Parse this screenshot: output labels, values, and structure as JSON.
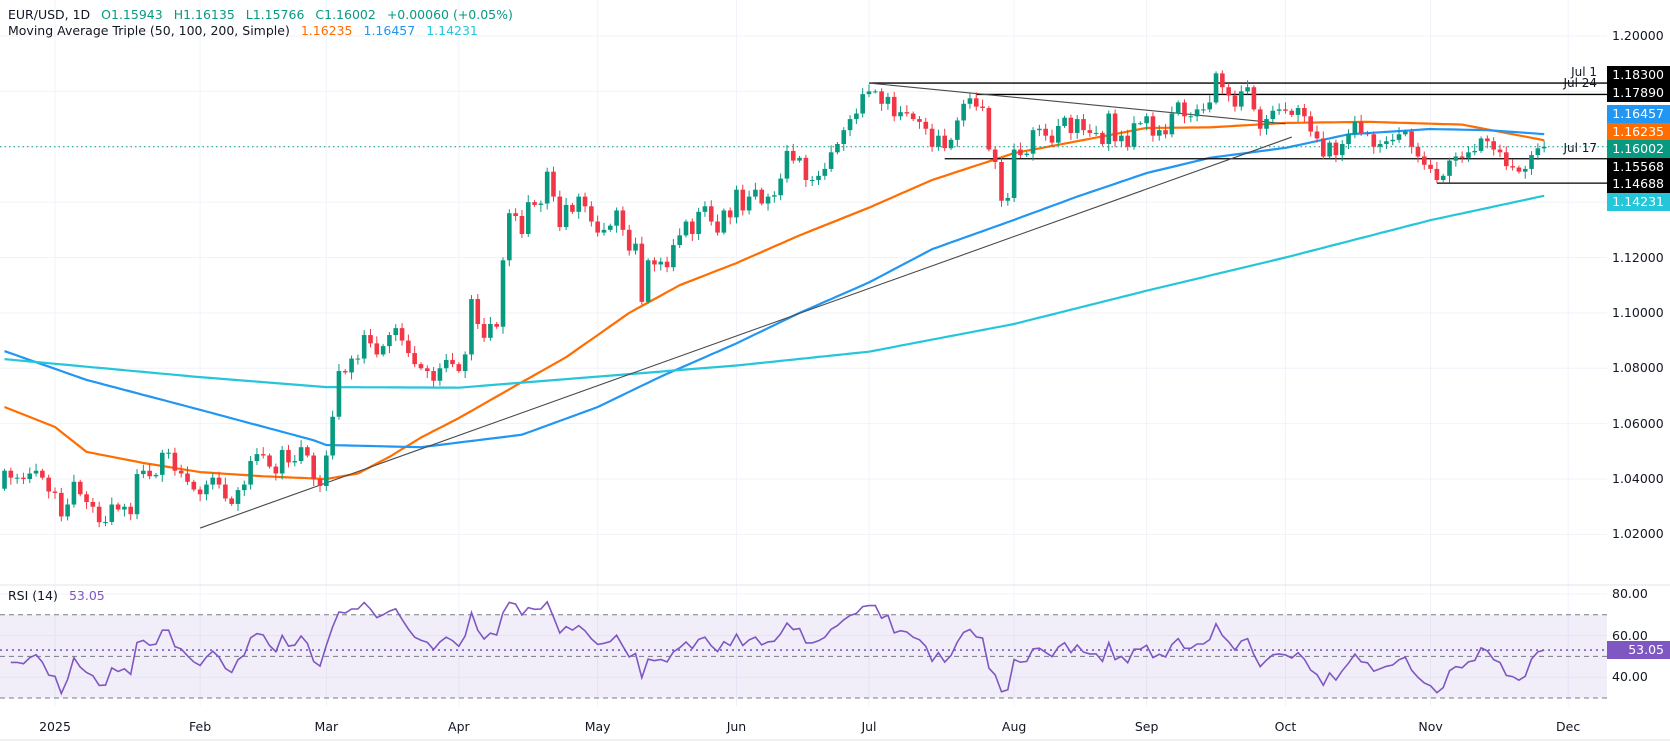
{
  "header": {
    "symbol": "EUR/USD, 1D",
    "open": "O1.15943",
    "high": "H1.16135",
    "low": "L1.15766",
    "close": "C1.16002",
    "change": "+0.00060 (+0.05%)",
    "ma_title": "Moving Average Triple (50, 100, 200, Simple)",
    "ma50": "1.16235",
    "ma100": "1.16457",
    "ma200": "1.14231"
  },
  "rsi_legend": {
    "title": "RSI (14)",
    "value": "53.05"
  },
  "colors": {
    "up": "#089981",
    "down": "#f23645",
    "ma50": "#ff6d00",
    "ma100": "#2196f3",
    "ma200": "#26c6da",
    "rsi": "#7e57c2",
    "level": "#000000"
  },
  "chart_data": {
    "type": "candlestick",
    "symbol": "EUR/USD",
    "interval": "1D",
    "ylim": [
      1.005,
      1.21
    ],
    "y_ticks": [
      "1.20000",
      "1.12000",
      "1.10000",
      "1.08000",
      "1.06000",
      "1.04000",
      "1.02000"
    ],
    "x_ticks": [
      "2025",
      "Feb",
      "Mar",
      "Apr",
      "May",
      "Jun",
      "Jul",
      "Aug",
      "Sep",
      "Oct",
      "Nov",
      "Dec"
    ],
    "grid": true,
    "last_price": 1.16002,
    "candles": {
      "first_open": 1.0365,
      "months": [
        {
          "month": "2024-12",
          "first_day": 20,
          "closes": [
            1.043,
            1.0405,
            1.0405,
            1.04,
            1.042,
            1.043,
            1.0405,
            1.0355
          ]
        },
        {
          "month": "2025-01",
          "first_day": 1,
          "closes": [
            1.035,
            1.0265,
            1.0308,
            1.039,
            1.0345,
            1.0317,
            1.03,
            1.0244,
            1.0245,
            1.0308,
            1.029,
            1.03,
            1.0273,
            1.0418,
            1.043,
            1.041,
            1.0415,
            1.0495,
            1.0495,
            1.043,
            1.042,
            1.039,
            1.0362
          ]
        },
        {
          "month": "2025-02",
          "first_day": 1,
          "closes": [
            1.0345,
            1.038,
            1.0405,
            1.038,
            1.033,
            1.031,
            1.036,
            1.038,
            1.0465,
            1.049,
            1.0485,
            1.0445,
            1.042,
            1.0505,
            1.046,
            1.0465,
            1.0515,
            1.0485,
            1.04,
            1.0375
          ]
        },
        {
          "month": "2025-03",
          "first_day": 1,
          "closes": [
            1.0485,
            1.0625,
            1.079,
            1.0785,
            1.0835,
            1.0835,
            1.092,
            1.089,
            1.085,
            1.088,
            1.092,
            1.0945,
            1.09,
            1.0855,
            1.0815,
            1.08,
            1.079,
            1.0755,
            1.08,
            1.083,
            1.0815
          ]
        },
        {
          "month": "2025-04",
          "first_day": 1,
          "closes": [
            1.079,
            1.085,
            1.105,
            1.096,
            1.091,
            1.096,
            1.095,
            1.119,
            1.136,
            1.135,
            1.1285,
            1.14,
            1.139,
            1.1395,
            1.151,
            1.142,
            1.131,
            1.139,
            1.1365,
            1.142,
            1.1385,
            1.133
          ]
        },
        {
          "month": "2025-05",
          "first_day": 1,
          "closes": [
            1.129,
            1.13,
            1.1315,
            1.137,
            1.13,
            1.1225,
            1.125,
            1.104,
            1.119,
            1.1175,
            1.1185,
            1.1165,
            1.1245,
            1.128,
            1.133,
            1.1285,
            1.1365,
            1.1385,
            1.133,
            1.129,
            1.137,
            1.1345
          ]
        },
        {
          "month": "2025-06",
          "first_day": 1,
          "closes": [
            1.1445,
            1.137,
            1.142,
            1.1445,
            1.1395,
            1.142,
            1.1425,
            1.1485,
            1.1585,
            1.155,
            1.156,
            1.148,
            1.148,
            1.1495,
            1.152,
            1.158,
            1.161,
            1.166,
            1.17,
            1.172,
            1.179
          ]
        },
        {
          "month": "2025-07",
          "first_day": 1,
          "closes": [
            1.18,
            1.18,
            1.1755,
            1.178,
            1.171,
            1.1725,
            1.172,
            1.17,
            1.169,
            1.1665,
            1.16,
            1.164,
            1.1595,
            1.1625,
            1.1695,
            1.1755,
            1.1775,
            1.1745,
            1.174,
            1.159,
            1.1545,
            1.1405,
            1.1415
          ]
        },
        {
          "month": "2025-08",
          "first_day": 1,
          "closes": [
            1.159,
            1.157,
            1.1575,
            1.166,
            1.1665,
            1.164,
            1.1615,
            1.1675,
            1.1705,
            1.165,
            1.17,
            1.166,
            1.165,
            1.165,
            1.161,
            1.172,
            1.162,
            1.164,
            1.16,
            1.1685,
            1.1685
          ]
        },
        {
          "month": "2025-09",
          "first_day": 1,
          "closes": [
            1.171,
            1.164,
            1.166,
            1.1645,
            1.172,
            1.176,
            1.171,
            1.171,
            1.1735,
            1.1735,
            1.176,
            1.1865,
            1.1815,
            1.1785,
            1.1745,
            1.18,
            1.1815,
            1.1735,
            1.1665,
            1.17,
            1.173,
            1.1735
          ]
        },
        {
          "month": "2025-10",
          "first_day": 1,
          "closes": [
            1.173,
            1.1715,
            1.174,
            1.171,
            1.1655,
            1.163,
            1.1565,
            1.1615,
            1.157,
            1.161,
            1.1645,
            1.169,
            1.165,
            1.1645,
            1.16,
            1.161,
            1.162,
            1.1625,
            1.1645,
            1.1655,
            1.16,
            1.1565,
            1.1535
          ]
        },
        {
          "month": "2025-11",
          "first_day": 1,
          "closes": [
            1.152,
            1.148,
            1.1495,
            1.155,
            1.1565,
            1.156,
            1.158,
            1.1585,
            1.163,
            1.162,
            1.159,
            1.158,
            1.153,
            1.1525,
            1.151,
            1.152,
            1.157,
            1.15943,
            1.16002
          ]
        }
      ]
    },
    "moving_averages": [
      {
        "name": "SMA 50",
        "color": "#ff6d00",
        "points": [
          [
            "2024-12-20",
            1.066
          ],
          [
            "2025-01-01",
            1.0588
          ],
          [
            "2025-01-08",
            1.0498
          ],
          [
            "2025-01-21",
            1.0458
          ],
          [
            "2025-02-03",
            1.0425
          ],
          [
            "2025-02-17",
            1.041
          ],
          [
            "2025-03-03",
            1.04
          ],
          [
            "2025-03-10",
            1.042
          ],
          [
            "2025-03-17",
            1.048
          ],
          [
            "2025-03-24",
            1.055
          ],
          [
            "2025-04-01",
            1.062
          ],
          [
            "2025-04-15",
            1.075
          ],
          [
            "2025-04-24",
            1.084
          ],
          [
            "2025-05-08",
            1.1
          ],
          [
            "2025-05-20",
            1.11
          ],
          [
            "2025-06-02",
            1.118
          ],
          [
            "2025-06-16",
            1.128
          ],
          [
            "2025-07-01",
            1.138
          ],
          [
            "2025-07-15",
            1.148
          ],
          [
            "2025-08-01",
            1.1577
          ],
          [
            "2025-08-15",
            1.162
          ],
          [
            "2025-09-01",
            1.1668
          ],
          [
            "2025-09-15",
            1.167
          ],
          [
            "2025-10-01",
            1.1686
          ],
          [
            "2025-10-20",
            1.169
          ],
          [
            "2025-11-10",
            1.168
          ],
          [
            "2025-11-27",
            1.16235
          ]
        ]
      },
      {
        "name": "SMA 100",
        "color": "#2196f3",
        "points": [
          [
            "2024-12-20",
            1.0862
          ],
          [
            "2025-01-08",
            1.0758
          ],
          [
            "2025-02-03",
            1.065
          ],
          [
            "2025-02-27",
            1.054
          ],
          [
            "2025-03-03",
            1.0523
          ],
          [
            "2025-03-24",
            1.0515
          ],
          [
            "2025-04-15",
            1.056
          ],
          [
            "2025-05-01",
            1.066
          ],
          [
            "2025-05-15",
            1.077
          ],
          [
            "2025-06-02",
            1.089
          ],
          [
            "2025-06-16",
            1.1
          ],
          [
            "2025-07-01",
            1.111
          ],
          [
            "2025-07-15",
            1.123
          ],
          [
            "2025-08-01",
            1.1336
          ],
          [
            "2025-08-15",
            1.142
          ],
          [
            "2025-09-01",
            1.1505
          ],
          [
            "2025-09-15",
            1.156
          ],
          [
            "2025-10-01",
            1.1596
          ],
          [
            "2025-10-15",
            1.1645
          ],
          [
            "2025-11-03",
            1.1664
          ],
          [
            "2025-11-14",
            1.166
          ],
          [
            "2025-11-27",
            1.16457
          ]
        ]
      },
      {
        "name": "SMA 200",
        "color": "#26c6da",
        "points": [
          [
            "2024-12-20",
            1.0833
          ],
          [
            "2025-02-03",
            1.0768
          ],
          [
            "2025-03-03",
            1.0732
          ],
          [
            "2025-04-01",
            1.073
          ],
          [
            "2025-05-01",
            1.077
          ],
          [
            "2025-06-02",
            1.081
          ],
          [
            "2025-07-01",
            1.086
          ],
          [
            "2025-08-01",
            1.096
          ],
          [
            "2025-09-01",
            1.108
          ],
          [
            "2025-10-01",
            1.12
          ],
          [
            "2025-11-03",
            1.1335
          ],
          [
            "2025-11-27",
            1.1423
          ]
        ]
      }
    ],
    "levels": [
      {
        "label": "Jul 1",
        "price": 1.183,
        "from": "2025-07-01"
      },
      {
        "label": "Jul 24",
        "price": 1.1789,
        "from": "2025-07-24"
      },
      {
        "label": "Jul 17",
        "price": 1.15568,
        "from": "2025-07-17"
      },
      {
        "label": "",
        "price": 1.14688,
        "from": "2025-11-04"
      }
    ],
    "trendlines": [
      {
        "from": [
          "2025-07-01",
          1.183
        ],
        "to": [
          "2025-10-01",
          1.1683
        ]
      },
      {
        "from": [
          "2025-02-03",
          1.0223
        ],
        "to": [
          "2025-10-02",
          1.1635
        ]
      }
    ],
    "price_labels": [
      {
        "text": "1.18300",
        "color": "#000000"
      },
      {
        "text": "1.17890",
        "color": "#000000"
      },
      {
        "text": "1.16457",
        "color": "#2196f3"
      },
      {
        "text": "1.16235",
        "color": "#ff6d00"
      },
      {
        "text": "1.16002",
        "color": "#089981"
      },
      {
        "text": "1.15568",
        "color": "#000000"
      },
      {
        "text": "1.14688",
        "color": "#000000"
      },
      {
        "text": "1.14231",
        "color": "#26c6da"
      }
    ],
    "rsi": {
      "period": 14,
      "value": 53.05,
      "ylim": [
        25,
        85
      ],
      "y_ticks": [
        "80.00",
        "60.00",
        "40.00"
      ],
      "bands": [
        30,
        50,
        70
      ]
    }
  }
}
